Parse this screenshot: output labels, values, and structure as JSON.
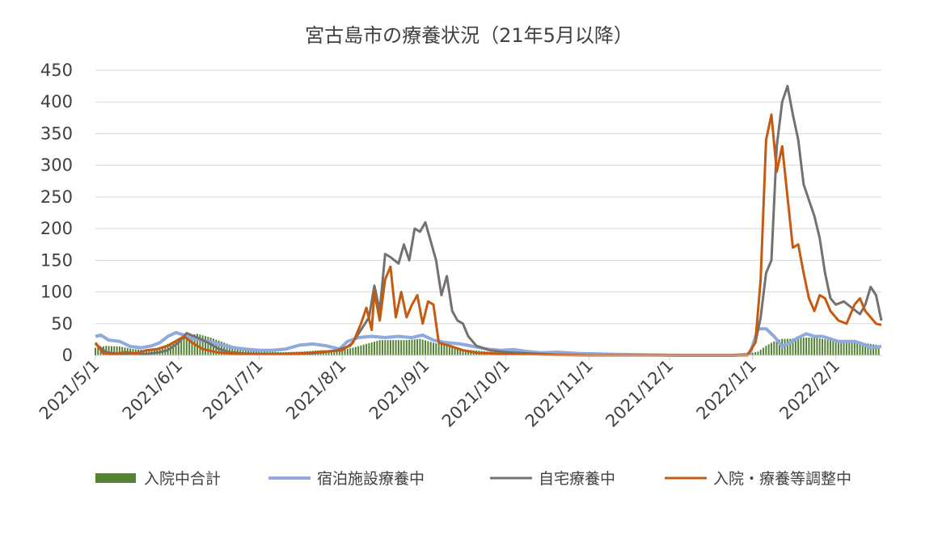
{
  "chart_data": {
    "type": "line",
    "title": "宮古島市の療養状況（21年5月以降）",
    "xlabel": "",
    "ylabel": "",
    "ylim": [
      0,
      450
    ],
    "yticks": [
      "0",
      "50",
      "100",
      "150",
      "200",
      "250",
      "300",
      "350",
      "400",
      "450"
    ],
    "xlim": [
      "2021-05-01",
      "2022-02-18"
    ],
    "xticks": [
      "2021/5/1",
      "2021/6/1",
      "2021/7/1",
      "2021/8/1",
      "2021/9/1",
      "2021/10/1",
      "2021/11/1",
      "2021/12/1",
      "2022/1/1",
      "2022/2/1"
    ],
    "grid": "horizontal",
    "legend": "bottom",
    "series": [
      {
        "name": "入院中合計",
        "type": "bar",
        "color": "#548235",
        "points": [
          [
            "2021-05-01",
            12
          ],
          [
            "2021-05-05",
            15
          ],
          [
            "2021-05-10",
            14
          ],
          [
            "2021-05-15",
            10
          ],
          [
            "2021-05-20",
            8
          ],
          [
            "2021-05-25",
            12
          ],
          [
            "2021-05-30",
            22
          ],
          [
            "2021-06-03",
            30
          ],
          [
            "2021-06-08",
            34
          ],
          [
            "2021-06-13",
            28
          ],
          [
            "2021-06-18",
            20
          ],
          [
            "2021-06-23",
            12
          ],
          [
            "2021-06-28",
            8
          ],
          [
            "2021-07-03",
            6
          ],
          [
            "2021-07-10",
            5
          ],
          [
            "2021-07-17",
            6
          ],
          [
            "2021-07-24",
            8
          ],
          [
            "2021-07-31",
            8
          ],
          [
            "2021-08-05",
            12
          ],
          [
            "2021-08-10",
            18
          ],
          [
            "2021-08-15",
            24
          ],
          [
            "2021-08-20",
            24
          ],
          [
            "2021-08-25",
            24
          ],
          [
            "2021-08-30",
            26
          ],
          [
            "2021-09-04",
            20
          ],
          [
            "2021-09-09",
            16
          ],
          [
            "2021-09-14",
            10
          ],
          [
            "2021-09-19",
            8
          ],
          [
            "2021-09-24",
            6
          ],
          [
            "2021-09-30",
            4
          ],
          [
            "2021-10-06",
            3
          ],
          [
            "2021-10-15",
            2
          ],
          [
            "2021-10-25",
            1
          ],
          [
            "2021-11-05",
            1
          ],
          [
            "2021-11-20",
            0
          ],
          [
            "2021-12-10",
            0
          ],
          [
            "2021-12-28",
            0
          ],
          [
            "2022-01-03",
            6
          ],
          [
            "2022-01-06",
            15
          ],
          [
            "2022-01-09",
            22
          ],
          [
            "2022-01-12",
            26
          ],
          [
            "2022-01-15",
            26
          ],
          [
            "2022-01-18",
            28
          ],
          [
            "2022-01-21",
            28
          ],
          [
            "2022-01-24",
            28
          ],
          [
            "2022-01-27",
            26
          ],
          [
            "2022-01-30",
            24
          ],
          [
            "2022-02-02",
            22
          ],
          [
            "2022-02-05",
            20
          ],
          [
            "2022-02-08",
            20
          ],
          [
            "2022-02-11",
            20
          ],
          [
            "2022-02-14",
            18
          ],
          [
            "2022-02-17",
            16
          ]
        ]
      },
      {
        "name": "宿泊施設療養中",
        "type": "line",
        "color": "#8FAADC",
        "points": [
          [
            "2021-05-01",
            30
          ],
          [
            "2021-05-03",
            32
          ],
          [
            "2021-05-06",
            24
          ],
          [
            "2021-05-10",
            22
          ],
          [
            "2021-05-14",
            14
          ],
          [
            "2021-05-18",
            12
          ],
          [
            "2021-05-22",
            15
          ],
          [
            "2021-05-25",
            20
          ],
          [
            "2021-05-28",
            30
          ],
          [
            "2021-05-31",
            36
          ],
          [
            "2021-06-03",
            32
          ],
          [
            "2021-06-06",
            26
          ],
          [
            "2021-06-10",
            24
          ],
          [
            "2021-06-14",
            20
          ],
          [
            "2021-06-18",
            15
          ],
          [
            "2021-06-22",
            12
          ],
          [
            "2021-06-26",
            10
          ],
          [
            "2021-07-01",
            8
          ],
          [
            "2021-07-06",
            8
          ],
          [
            "2021-07-11",
            10
          ],
          [
            "2021-07-16",
            16
          ],
          [
            "2021-07-21",
            18
          ],
          [
            "2021-07-26",
            15
          ],
          [
            "2021-07-31",
            10
          ],
          [
            "2021-08-03",
            22
          ],
          [
            "2021-08-07",
            28
          ],
          [
            "2021-08-12",
            30
          ],
          [
            "2021-08-17",
            28
          ],
          [
            "2021-08-22",
            30
          ],
          [
            "2021-08-27",
            28
          ],
          [
            "2021-08-31",
            32
          ],
          [
            "2021-09-04",
            24
          ],
          [
            "2021-09-09",
            20
          ],
          [
            "2021-09-14",
            18
          ],
          [
            "2021-09-19",
            14
          ],
          [
            "2021-09-24",
            10
          ],
          [
            "2021-09-29",
            8
          ],
          [
            "2021-10-04",
            9
          ],
          [
            "2021-10-09",
            6
          ],
          [
            "2021-10-14",
            4
          ],
          [
            "2021-10-20",
            5
          ],
          [
            "2021-10-28",
            3
          ],
          [
            "2021-11-06",
            2
          ],
          [
            "2021-11-20",
            1
          ],
          [
            "2021-12-05",
            0
          ],
          [
            "2021-12-25",
            0
          ],
          [
            "2021-12-31",
            2
          ],
          [
            "2022-01-03",
            42
          ],
          [
            "2022-01-06",
            42
          ],
          [
            "2022-01-09",
            30
          ],
          [
            "2022-01-12",
            14
          ],
          [
            "2022-01-15",
            20
          ],
          [
            "2022-01-18",
            28
          ],
          [
            "2022-01-21",
            34
          ],
          [
            "2022-01-24",
            30
          ],
          [
            "2022-01-27",
            30
          ],
          [
            "2022-01-30",
            26
          ],
          [
            "2022-02-02",
            22
          ],
          [
            "2022-02-05",
            22
          ],
          [
            "2022-02-08",
            22
          ],
          [
            "2022-02-11",
            18
          ],
          [
            "2022-02-14",
            12
          ],
          [
            "2022-02-18",
            14
          ]
        ]
      },
      {
        "name": "自宅療養中",
        "type": "line",
        "color": "#767171",
        "points": [
          [
            "2021-05-01",
            18
          ],
          [
            "2021-05-05",
            5
          ],
          [
            "2021-05-10",
            2
          ],
          [
            "2021-05-15",
            3
          ],
          [
            "2021-05-20",
            2
          ],
          [
            "2021-05-25",
            5
          ],
          [
            "2021-05-28",
            8
          ],
          [
            "2021-06-01",
            20
          ],
          [
            "2021-06-04",
            35
          ],
          [
            "2021-06-08",
            28
          ],
          [
            "2021-06-12",
            20
          ],
          [
            "2021-06-16",
            10
          ],
          [
            "2021-06-20",
            5
          ],
          [
            "2021-06-25",
            3
          ],
          [
            "2021-07-01",
            2
          ],
          [
            "2021-07-10",
            2
          ],
          [
            "2021-07-20",
            3
          ],
          [
            "2021-07-25",
            5
          ],
          [
            "2021-07-30",
            8
          ],
          [
            "2021-08-04",
            15
          ],
          [
            "2021-08-08",
            40
          ],
          [
            "2021-08-11",
            60
          ],
          [
            "2021-08-13",
            110
          ],
          [
            "2021-08-15",
            70
          ],
          [
            "2021-08-17",
            160
          ],
          [
            "2021-08-19",
            155
          ],
          [
            "2021-08-22",
            145
          ],
          [
            "2021-08-24",
            175
          ],
          [
            "2021-08-26",
            150
          ],
          [
            "2021-08-28",
            200
          ],
          [
            "2021-08-30",
            195
          ],
          [
            "2021-09-01",
            210
          ],
          [
            "2021-09-03",
            180
          ],
          [
            "2021-09-05",
            150
          ],
          [
            "2021-09-07",
            95
          ],
          [
            "2021-09-09",
            125
          ],
          [
            "2021-09-11",
            70
          ],
          [
            "2021-09-13",
            55
          ],
          [
            "2021-09-15",
            50
          ],
          [
            "2021-09-17",
            30
          ],
          [
            "2021-09-20",
            15
          ],
          [
            "2021-09-25",
            8
          ],
          [
            "2021-10-01",
            5
          ],
          [
            "2021-10-10",
            3
          ],
          [
            "2021-10-20",
            1
          ],
          [
            "2021-11-01",
            0
          ],
          [
            "2021-12-01",
            0
          ],
          [
            "2021-12-30",
            0
          ],
          [
            "2022-01-02",
            20
          ],
          [
            "2022-01-04",
            60
          ],
          [
            "2022-01-06",
            130
          ],
          [
            "2022-01-08",
            150
          ],
          [
            "2022-01-10",
            330
          ],
          [
            "2022-01-12",
            400
          ],
          [
            "2022-01-14",
            425
          ],
          [
            "2022-01-16",
            380
          ],
          [
            "2022-01-18",
            340
          ],
          [
            "2022-01-20",
            270
          ],
          [
            "2022-01-22",
            245
          ],
          [
            "2022-01-24",
            220
          ],
          [
            "2022-01-26",
            185
          ],
          [
            "2022-01-28",
            130
          ],
          [
            "2022-01-30",
            90
          ],
          [
            "2022-02-01",
            80
          ],
          [
            "2022-02-04",
            85
          ],
          [
            "2022-02-07",
            75
          ],
          [
            "2022-02-10",
            65
          ],
          [
            "2022-02-12",
            80
          ],
          [
            "2022-02-14",
            108
          ],
          [
            "2022-02-16",
            95
          ],
          [
            "2022-02-18",
            55
          ]
        ]
      },
      {
        "name": "入院・療養等調整中",
        "type": "line",
        "color": "#C55A11",
        "points": [
          [
            "2021-05-01",
            20
          ],
          [
            "2021-05-04",
            3
          ],
          [
            "2021-05-08",
            2
          ],
          [
            "2021-05-12",
            5
          ],
          [
            "2021-05-16",
            3
          ],
          [
            "2021-05-20",
            8
          ],
          [
            "2021-05-24",
            10
          ],
          [
            "2021-05-28",
            15
          ],
          [
            "2021-06-01",
            25
          ],
          [
            "2021-06-03",
            30
          ],
          [
            "2021-06-06",
            20
          ],
          [
            "2021-06-10",
            10
          ],
          [
            "2021-06-15",
            5
          ],
          [
            "2021-06-20",
            3
          ],
          [
            "2021-06-28",
            2
          ],
          [
            "2021-07-10",
            2
          ],
          [
            "2021-07-20",
            4
          ],
          [
            "2021-07-26",
            6
          ],
          [
            "2021-08-01",
            8
          ],
          [
            "2021-08-05",
            20
          ],
          [
            "2021-08-08",
            50
          ],
          [
            "2021-08-10",
            75
          ],
          [
            "2021-08-12",
            40
          ],
          [
            "2021-08-13",
            100
          ],
          [
            "2021-08-15",
            55
          ],
          [
            "2021-08-17",
            120
          ],
          [
            "2021-08-19",
            140
          ],
          [
            "2021-08-21",
            60
          ],
          [
            "2021-08-23",
            100
          ],
          [
            "2021-08-25",
            60
          ],
          [
            "2021-08-27",
            80
          ],
          [
            "2021-08-29",
            95
          ],
          [
            "2021-08-31",
            50
          ],
          [
            "2021-09-02",
            85
          ],
          [
            "2021-09-04",
            80
          ],
          [
            "2021-09-06",
            20
          ],
          [
            "2021-09-10",
            15
          ],
          [
            "2021-09-15",
            8
          ],
          [
            "2021-09-20",
            4
          ],
          [
            "2021-10-01",
            2
          ],
          [
            "2021-10-15",
            1
          ],
          [
            "2021-11-01",
            0
          ],
          [
            "2021-12-01",
            0
          ],
          [
            "2021-12-30",
            0
          ],
          [
            "2022-01-02",
            20
          ],
          [
            "2022-01-04",
            120
          ],
          [
            "2022-01-06",
            340
          ],
          [
            "2022-01-08",
            380
          ],
          [
            "2022-01-10",
            290
          ],
          [
            "2022-01-12",
            330
          ],
          [
            "2022-01-14",
            250
          ],
          [
            "2022-01-16",
            170
          ],
          [
            "2022-01-18",
            175
          ],
          [
            "2022-01-20",
            130
          ],
          [
            "2022-01-22",
            90
          ],
          [
            "2022-01-24",
            70
          ],
          [
            "2022-01-26",
            95
          ],
          [
            "2022-01-28",
            90
          ],
          [
            "2022-01-30",
            70
          ],
          [
            "2022-02-02",
            55
          ],
          [
            "2022-02-05",
            50
          ],
          [
            "2022-02-08",
            80
          ],
          [
            "2022-02-10",
            90
          ],
          [
            "2022-02-12",
            70
          ],
          [
            "2022-02-14",
            60
          ],
          [
            "2022-02-16",
            50
          ],
          [
            "2022-02-18",
            48
          ]
        ]
      }
    ]
  }
}
